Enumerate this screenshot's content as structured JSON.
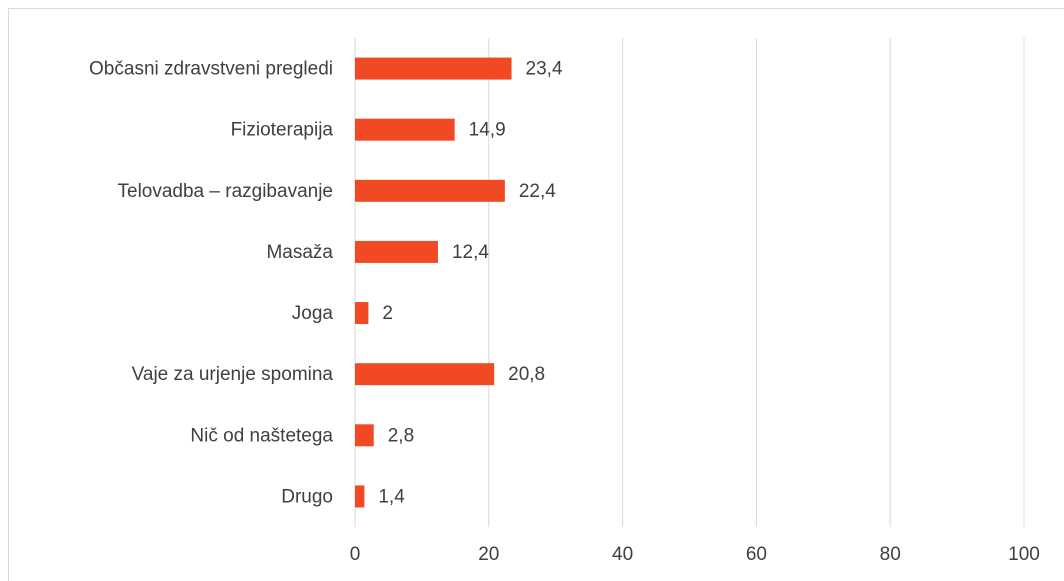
{
  "chart_data": {
    "type": "bar",
    "orientation": "horizontal",
    "categories": [
      "Občasni zdravstveni pregledi",
      "Fizioterapija",
      "Telovadba – razgibavanje",
      "Masaža",
      "Joga",
      "Vaje za urjenje spomina",
      "Nič od naštetega",
      "Drugo"
    ],
    "values": [
      23.4,
      14.9,
      22.4,
      12.4,
      2,
      20.8,
      2.8,
      1.4
    ],
    "value_labels": [
      "23,4",
      "14,9",
      "22,4",
      "12,4",
      "2",
      "20,8",
      "2,8",
      "1,4"
    ],
    "color": "#f04923",
    "xlim": [
      0,
      100
    ],
    "xticks": [
      0,
      20,
      40,
      60,
      80,
      100
    ],
    "grid": true
  }
}
